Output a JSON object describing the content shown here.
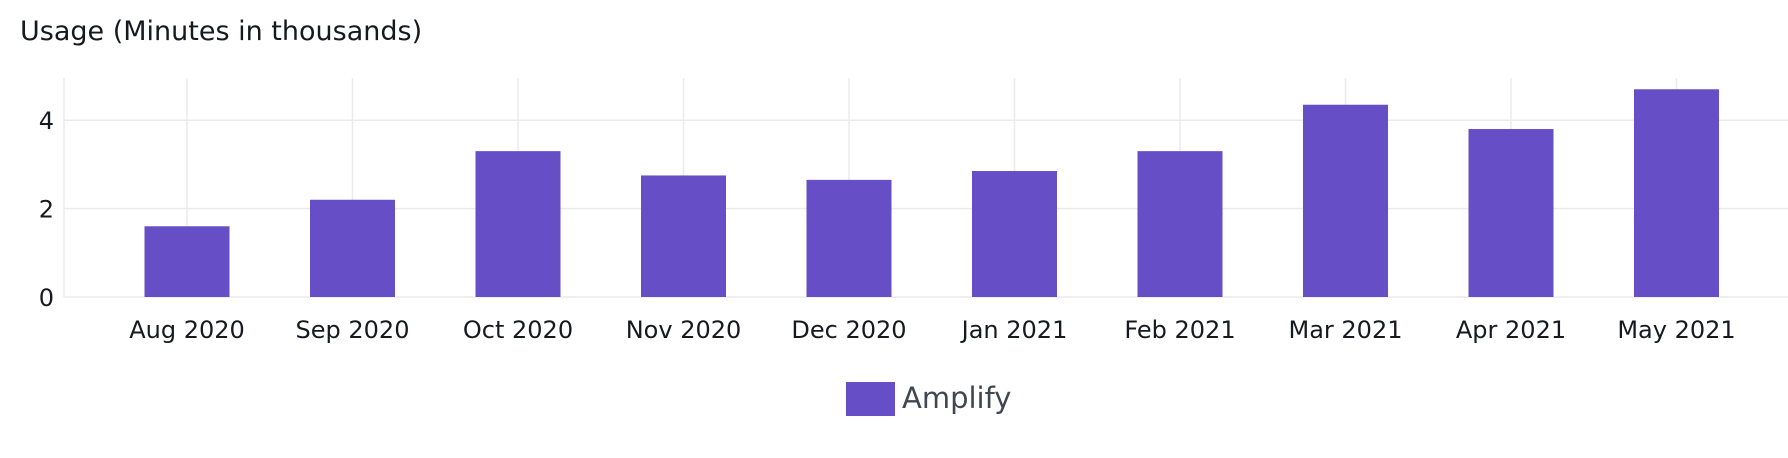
{
  "chart_data": {
    "type": "bar",
    "title": "Usage (Minutes in thousands)",
    "xlabel": "",
    "ylabel": "",
    "categories": [
      "Aug 2020",
      "Sep 2020",
      "Oct 2020",
      "Nov 2020",
      "Dec 2020",
      "Jan 2021",
      "Feb 2021",
      "Mar 2021",
      "Apr 2021",
      "May 2021"
    ],
    "series": [
      {
        "name": "Amplify",
        "color": "#654ec6",
        "values": [
          1.6,
          2.2,
          3.3,
          2.75,
          2.65,
          2.85,
          3.3,
          4.35,
          3.8,
          4.7
        ]
      }
    ],
    "ylim": [
      0,
      5
    ],
    "yticks": [
      0,
      2,
      4
    ],
    "grid": true,
    "legend_position": "bottom-center"
  }
}
